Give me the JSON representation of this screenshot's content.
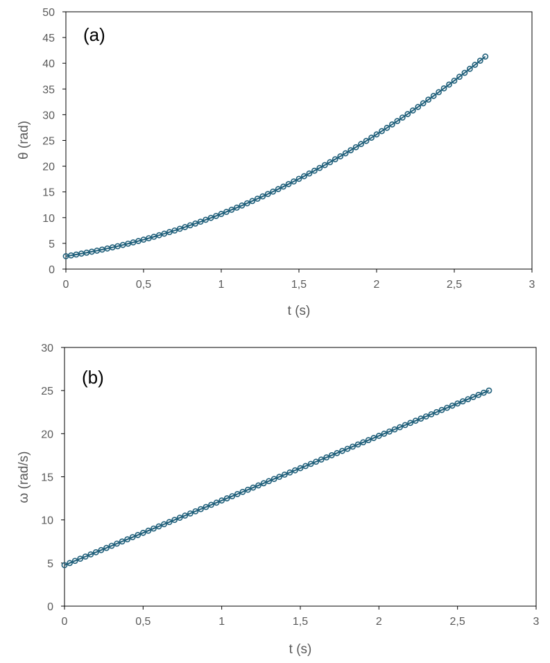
{
  "chart_data": [
    {
      "type": "scatter",
      "panel_label": "(a)",
      "xlabel": "t (s)",
      "ylabel": "θ (rad)",
      "xlim": [
        0,
        3
      ],
      "ylim": [
        0,
        50
      ],
      "xticks": [
        0,
        0.5,
        1,
        1.5,
        2,
        2.5,
        3
      ],
      "xtick_labels": [
        "0",
        "0,5",
        "1",
        "1,5",
        "2",
        "2,5",
        "3"
      ],
      "yticks": [
        0,
        5,
        10,
        15,
        20,
        25,
        30,
        35,
        40,
        45,
        50
      ],
      "ytick_labels": [
        "0",
        "5",
        "10",
        "15",
        "20",
        "25",
        "30",
        "35",
        "40",
        "45",
        "50"
      ],
      "grid": false,
      "legend": "none",
      "marker_color": "#1f5f7a",
      "line_color": "#1f5f7a",
      "series": [
        {
          "x": [
            0,
            0.0333,
            0.0667,
            0.1,
            0.1333,
            0.1667,
            0.2,
            0.2333,
            0.2667,
            0.3,
            0.3333,
            0.3667,
            0.4,
            0.4333,
            0.4667,
            0.5,
            0.5333,
            0.5667,
            0.6,
            0.6333,
            0.6667,
            0.7,
            0.7333,
            0.7667,
            0.8,
            0.8333,
            0.8667,
            0.9,
            0.9333,
            0.9667,
            1,
            1.0333,
            1.0667,
            1.1,
            1.1333,
            1.1667,
            1.2,
            1.2333,
            1.2667,
            1.3,
            1.3333,
            1.3667,
            1.4,
            1.4333,
            1.4667,
            1.5,
            1.5333,
            1.5667,
            1.6,
            1.6333,
            1.6667,
            1.7,
            1.7333,
            1.7667,
            1.8,
            1.8333,
            1.8667,
            1.9,
            1.9333,
            1.9667,
            2,
            2.0333,
            2.0667,
            2.1,
            2.1333,
            2.1667,
            2.2,
            2.2333,
            2.2667,
            2.3,
            2.3333,
            2.3667,
            2.4,
            2.4333,
            2.4667,
            2.5,
            2.5333,
            2.5667,
            2.6,
            2.6333,
            2.6667,
            2.7
          ],
          "y": [
            2.5,
            2.66,
            2.83,
            3.01,
            3.19,
            3.38,
            3.58,
            3.79,
            4.0,
            4.22,
            4.45,
            4.69,
            4.94,
            5.19,
            5.45,
            5.72,
            6.0,
            6.28,
            6.58,
            6.88,
            7.19,
            7.5,
            7.83,
            8.16,
            8.51,
            8.85,
            9.21,
            9.58,
            9.95,
            10.33,
            10.72,
            11.12,
            11.53,
            11.94,
            12.36,
            12.79,
            13.23,
            13.68,
            14.13,
            14.59,
            15.06,
            15.54,
            16.03,
            16.52,
            17.03,
            17.54,
            18.05,
            18.58,
            19.12,
            19.66,
            20.21,
            20.77,
            21.34,
            21.91,
            22.5,
            23.09,
            23.69,
            24.3,
            24.91,
            25.53,
            26.17,
            26.81,
            27.45,
            28.11,
            28.77,
            29.45,
            30.13,
            30.82,
            31.51,
            32.22,
            32.93,
            33.65,
            34.38,
            35.12,
            35.86,
            36.61,
            37.37,
            38.14,
            38.92,
            39.7,
            40.5,
            41.3
          ]
        }
      ]
    },
    {
      "type": "scatter",
      "panel_label": "(b)",
      "xlabel": "t (s)",
      "ylabel": "ω (rad/s)",
      "xlim": [
        0,
        3
      ],
      "ylim": [
        0,
        30
      ],
      "xticks": [
        0,
        0.5,
        1,
        1.5,
        2,
        2.5,
        3
      ],
      "xtick_labels": [
        "0",
        "0,5",
        "1",
        "1,5",
        "2",
        "2,5",
        "3"
      ],
      "yticks": [
        0,
        5,
        10,
        15,
        20,
        25,
        30
      ],
      "ytick_labels": [
        "0",
        "5",
        "10",
        "15",
        "20",
        "25",
        "30"
      ],
      "grid": false,
      "legend": "none",
      "marker_color": "#1f5f7a",
      "line_color": "#1f5f7a",
      "series": [
        {
          "x": [
            0,
            0.0333,
            0.0667,
            0.1,
            0.1333,
            0.1667,
            0.2,
            0.2333,
            0.2667,
            0.3,
            0.3333,
            0.3667,
            0.4,
            0.4333,
            0.4667,
            0.5,
            0.5333,
            0.5667,
            0.6,
            0.6333,
            0.6667,
            0.7,
            0.7333,
            0.7667,
            0.8,
            0.8333,
            0.8667,
            0.9,
            0.9333,
            0.9667,
            1,
            1.0333,
            1.0667,
            1.1,
            1.1333,
            1.1667,
            1.2,
            1.2333,
            1.2667,
            1.3,
            1.3333,
            1.3667,
            1.4,
            1.4333,
            1.4667,
            1.5,
            1.5333,
            1.5667,
            1.6,
            1.6333,
            1.6667,
            1.7,
            1.7333,
            1.7667,
            1.8,
            1.8333,
            1.8667,
            1.9,
            1.9333,
            1.9667,
            2,
            2.0333,
            2.0667,
            2.1,
            2.1333,
            2.1667,
            2.2,
            2.2333,
            2.2667,
            2.3,
            2.3333,
            2.3667,
            2.4,
            2.4333,
            2.4667,
            2.5,
            2.5333,
            2.5667,
            2.6,
            2.6333,
            2.6667,
            2.7
          ],
          "y": [
            4.75,
            5.0,
            5.25,
            5.5,
            5.75,
            6.0,
            6.25,
            6.5,
            6.75,
            7.0,
            7.25,
            7.5,
            7.75,
            8.0,
            8.25,
            8.5,
            8.75,
            9.0,
            9.25,
            9.5,
            9.75,
            10.0,
            10.25,
            10.5,
            10.75,
            11.0,
            11.25,
            11.5,
            11.75,
            12.0,
            12.25,
            12.5,
            12.75,
            13.0,
            13.25,
            13.5,
            13.75,
            14.0,
            14.25,
            14.5,
            14.75,
            15.0,
            15.25,
            15.5,
            15.75,
            16.0,
            16.25,
            16.5,
            16.75,
            17.0,
            17.25,
            17.5,
            17.75,
            18.0,
            18.25,
            18.5,
            18.75,
            19.0,
            19.25,
            19.5,
            19.75,
            20.0,
            20.25,
            20.5,
            20.75,
            21.0,
            21.25,
            21.5,
            21.75,
            22.0,
            22.25,
            22.5,
            22.75,
            23.0,
            23.25,
            23.5,
            23.75,
            24.0,
            24.25,
            24.5,
            24.75,
            25.0
          ]
        }
      ]
    }
  ]
}
